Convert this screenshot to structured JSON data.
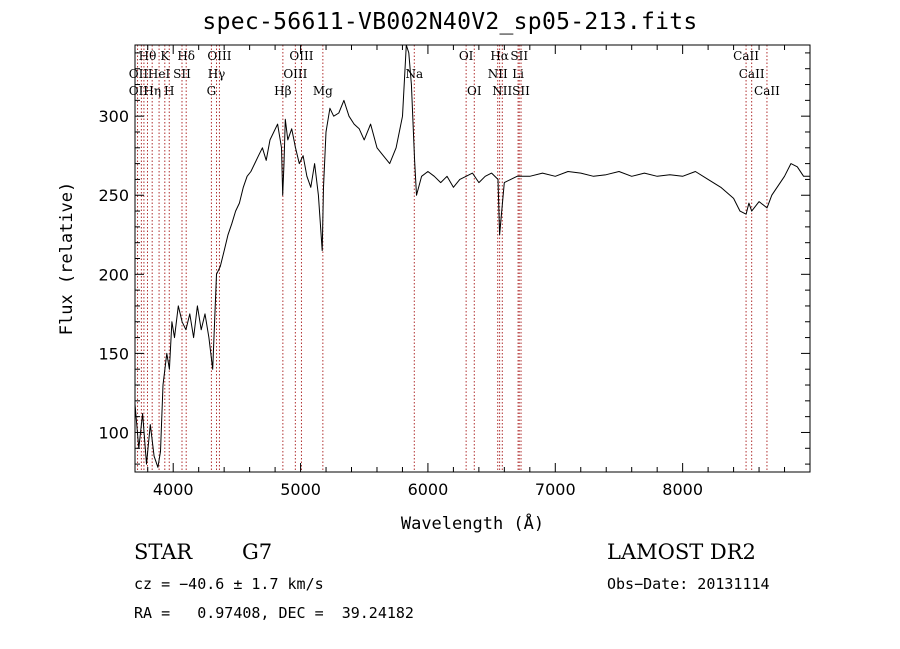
{
  "chart_data": {
    "type": "line",
    "title": "spec-56611-VB002N40V2_sp05-213.fits",
    "xlabel": "Wavelength (Å)",
    "ylabel": "Flux (relative)",
    "xlim": [
      3700,
      9000
    ],
    "ylim": [
      75,
      345
    ],
    "xticks": [
      4000,
      5000,
      6000,
      7000,
      8000
    ],
    "yticks": [
      100,
      150,
      200,
      250,
      300
    ],
    "grid": false,
    "series": [
      {
        "x": [
          3700,
          3730,
          3760,
          3790,
          3820,
          3850,
          3880,
          3900,
          3920,
          3950,
          3970,
          3990,
          4010,
          4040,
          4070,
          4100,
          4130,
          4160,
          4190,
          4220,
          4250,
          4280,
          4310,
          4340,
          4370,
          4400,
          4430,
          4460,
          4490,
          4520,
          4550,
          4580,
          4610,
          4640,
          4670,
          4700,
          4730,
          4760,
          4790,
          4820,
          4850,
          4860,
          4870,
          4880,
          4900,
          4930,
          4960,
          4990,
          5020,
          5050,
          5080,
          5110,
          5140,
          5170,
          5180,
          5200,
          5230,
          5260,
          5300,
          5340,
          5380,
          5420,
          5460,
          5500,
          5550,
          5600,
          5650,
          5700,
          5750,
          5800,
          5830,
          5850,
          5870,
          5895,
          5910,
          5950,
          6000,
          6050,
          6100,
          6150,
          6200,
          6250,
          6300,
          6350,
          6400,
          6450,
          6500,
          6550,
          6563,
          6600,
          6650,
          6700,
          6800,
          6900,
          7000,
          7100,
          7200,
          7300,
          7400,
          7500,
          7600,
          7700,
          7800,
          7900,
          8000,
          8100,
          8200,
          8300,
          8400,
          8450,
          8498,
          8520,
          8542,
          8600,
          8662,
          8700,
          8800,
          8850,
          8900,
          8950,
          9000
        ],
        "values": [
          118,
          90,
          112,
          80,
          105,
          85,
          78,
          88,
          130,
          150,
          140,
          170,
          160,
          180,
          170,
          165,
          175,
          160,
          180,
          165,
          175,
          160,
          140,
          200,
          205,
          215,
          225,
          232,
          240,
          245,
          255,
          262,
          265,
          270,
          275,
          280,
          272,
          285,
          290,
          295,
          280,
          250,
          270,
          298,
          285,
          292,
          280,
          270,
          275,
          262,
          255,
          270,
          250,
          215,
          255,
          290,
          305,
          300,
          302,
          310,
          300,
          295,
          292,
          285,
          295,
          280,
          275,
          270,
          280,
          300,
          345,
          340,
          320,
          272,
          250,
          262,
          265,
          262,
          258,
          262,
          255,
          260,
          262,
          264,
          258,
          262,
          264,
          260,
          225,
          258,
          260,
          262,
          262,
          264,
          262,
          265,
          264,
          262,
          263,
          265,
          262,
          264,
          262,
          263,
          262,
          265,
          260,
          255,
          248,
          240,
          238,
          245,
          240,
          246,
          242,
          250,
          262,
          270,
          268,
          262,
          262
        ]
      }
    ],
    "lines": [
      {
        "x": 3720
      },
      {
        "x": 3750
      },
      {
        "x": 3770
      },
      {
        "x": 3798
      },
      {
        "x": 3835
      },
      {
        "x": 3889
      },
      {
        "x": 3934
      },
      {
        "x": 3969
      },
      {
        "x": 4069
      },
      {
        "x": 4102
      },
      {
        "x": 4300
      },
      {
        "x": 4340
      },
      {
        "x": 4363
      },
      {
        "x": 4861
      },
      {
        "x": 4959
      },
      {
        "x": 5007
      },
      {
        "x": 5175
      },
      {
        "x": 5893
      },
      {
        "x": 6300
      },
      {
        "x": 6364
      },
      {
        "x": 6548
      },
      {
        "x": 6563
      },
      {
        "x": 6584
      },
      {
        "x": 6708
      },
      {
        "x": 6717
      },
      {
        "x": 6731
      },
      {
        "x": 8498
      },
      {
        "x": 8542
      },
      {
        "x": 8662
      }
    ],
    "line_labels": [
      {
        "text": "Hθ",
        "x": 3798,
        "row": 1
      },
      {
        "text": "K",
        "x": 3934,
        "row": 1
      },
      {
        "text": "Hδ",
        "x": 4102,
        "row": 1
      },
      {
        "text": "OIII",
        "x": 4363,
        "row": 1
      },
      {
        "text": "OIII",
        "x": 5007,
        "row": 1
      },
      {
        "text": "OI",
        "x": 6300,
        "row": 1
      },
      {
        "text": "Hα",
        "x": 6563,
        "row": 1
      },
      {
        "text": "SII",
        "x": 6717,
        "row": 1
      },
      {
        "text": "CaII",
        "x": 8498,
        "row": 1
      },
      {
        "text": "OII",
        "x": 3727,
        "row": 2
      },
      {
        "text": "HeI",
        "x": 3889,
        "row": 2
      },
      {
        "text": "SII",
        "x": 4069,
        "row": 2
      },
      {
        "text": "Hγ",
        "x": 4340,
        "row": 2
      },
      {
        "text": "OIII",
        "x": 4959,
        "row": 2
      },
      {
        "text": "Na",
        "x": 5893,
        "row": 2
      },
      {
        "text": "NII",
        "x": 6548,
        "row": 2
      },
      {
        "text": "Li",
        "x": 6708,
        "row": 2
      },
      {
        "text": "CaII",
        "x": 8542,
        "row": 2
      },
      {
        "text": "OII",
        "x": 3727,
        "row": 3
      },
      {
        "text": "Hη",
        "x": 3835,
        "row": 3
      },
      {
        "text": "H",
        "x": 3969,
        "row": 3
      },
      {
        "text": "G",
        "x": 4300,
        "row": 3
      },
      {
        "text": "Hβ",
        "x": 4861,
        "row": 3
      },
      {
        "text": "Mg",
        "x": 5175,
        "row": 3
      },
      {
        "text": "OI",
        "x": 6364,
        "row": 3
      },
      {
        "text": "NII",
        "x": 6584,
        "row": 3
      },
      {
        "text": "SII",
        "x": 6731,
        "row": 3
      },
      {
        "text": "CaII",
        "x": 8662,
        "row": 3
      }
    ],
    "colors": {
      "spectrum": "#000000",
      "lines": "#b03030",
      "axes": "#000000"
    }
  },
  "footer": {
    "class_label": "STAR",
    "subclass": "G7",
    "survey": "LAMOST DR2",
    "cz": "cz = −40.6 ± 1.7 km/s",
    "obs_date": "Obs−Date: 20131114",
    "coords": "RA =   0.97408, DEC =  39.24182"
  }
}
